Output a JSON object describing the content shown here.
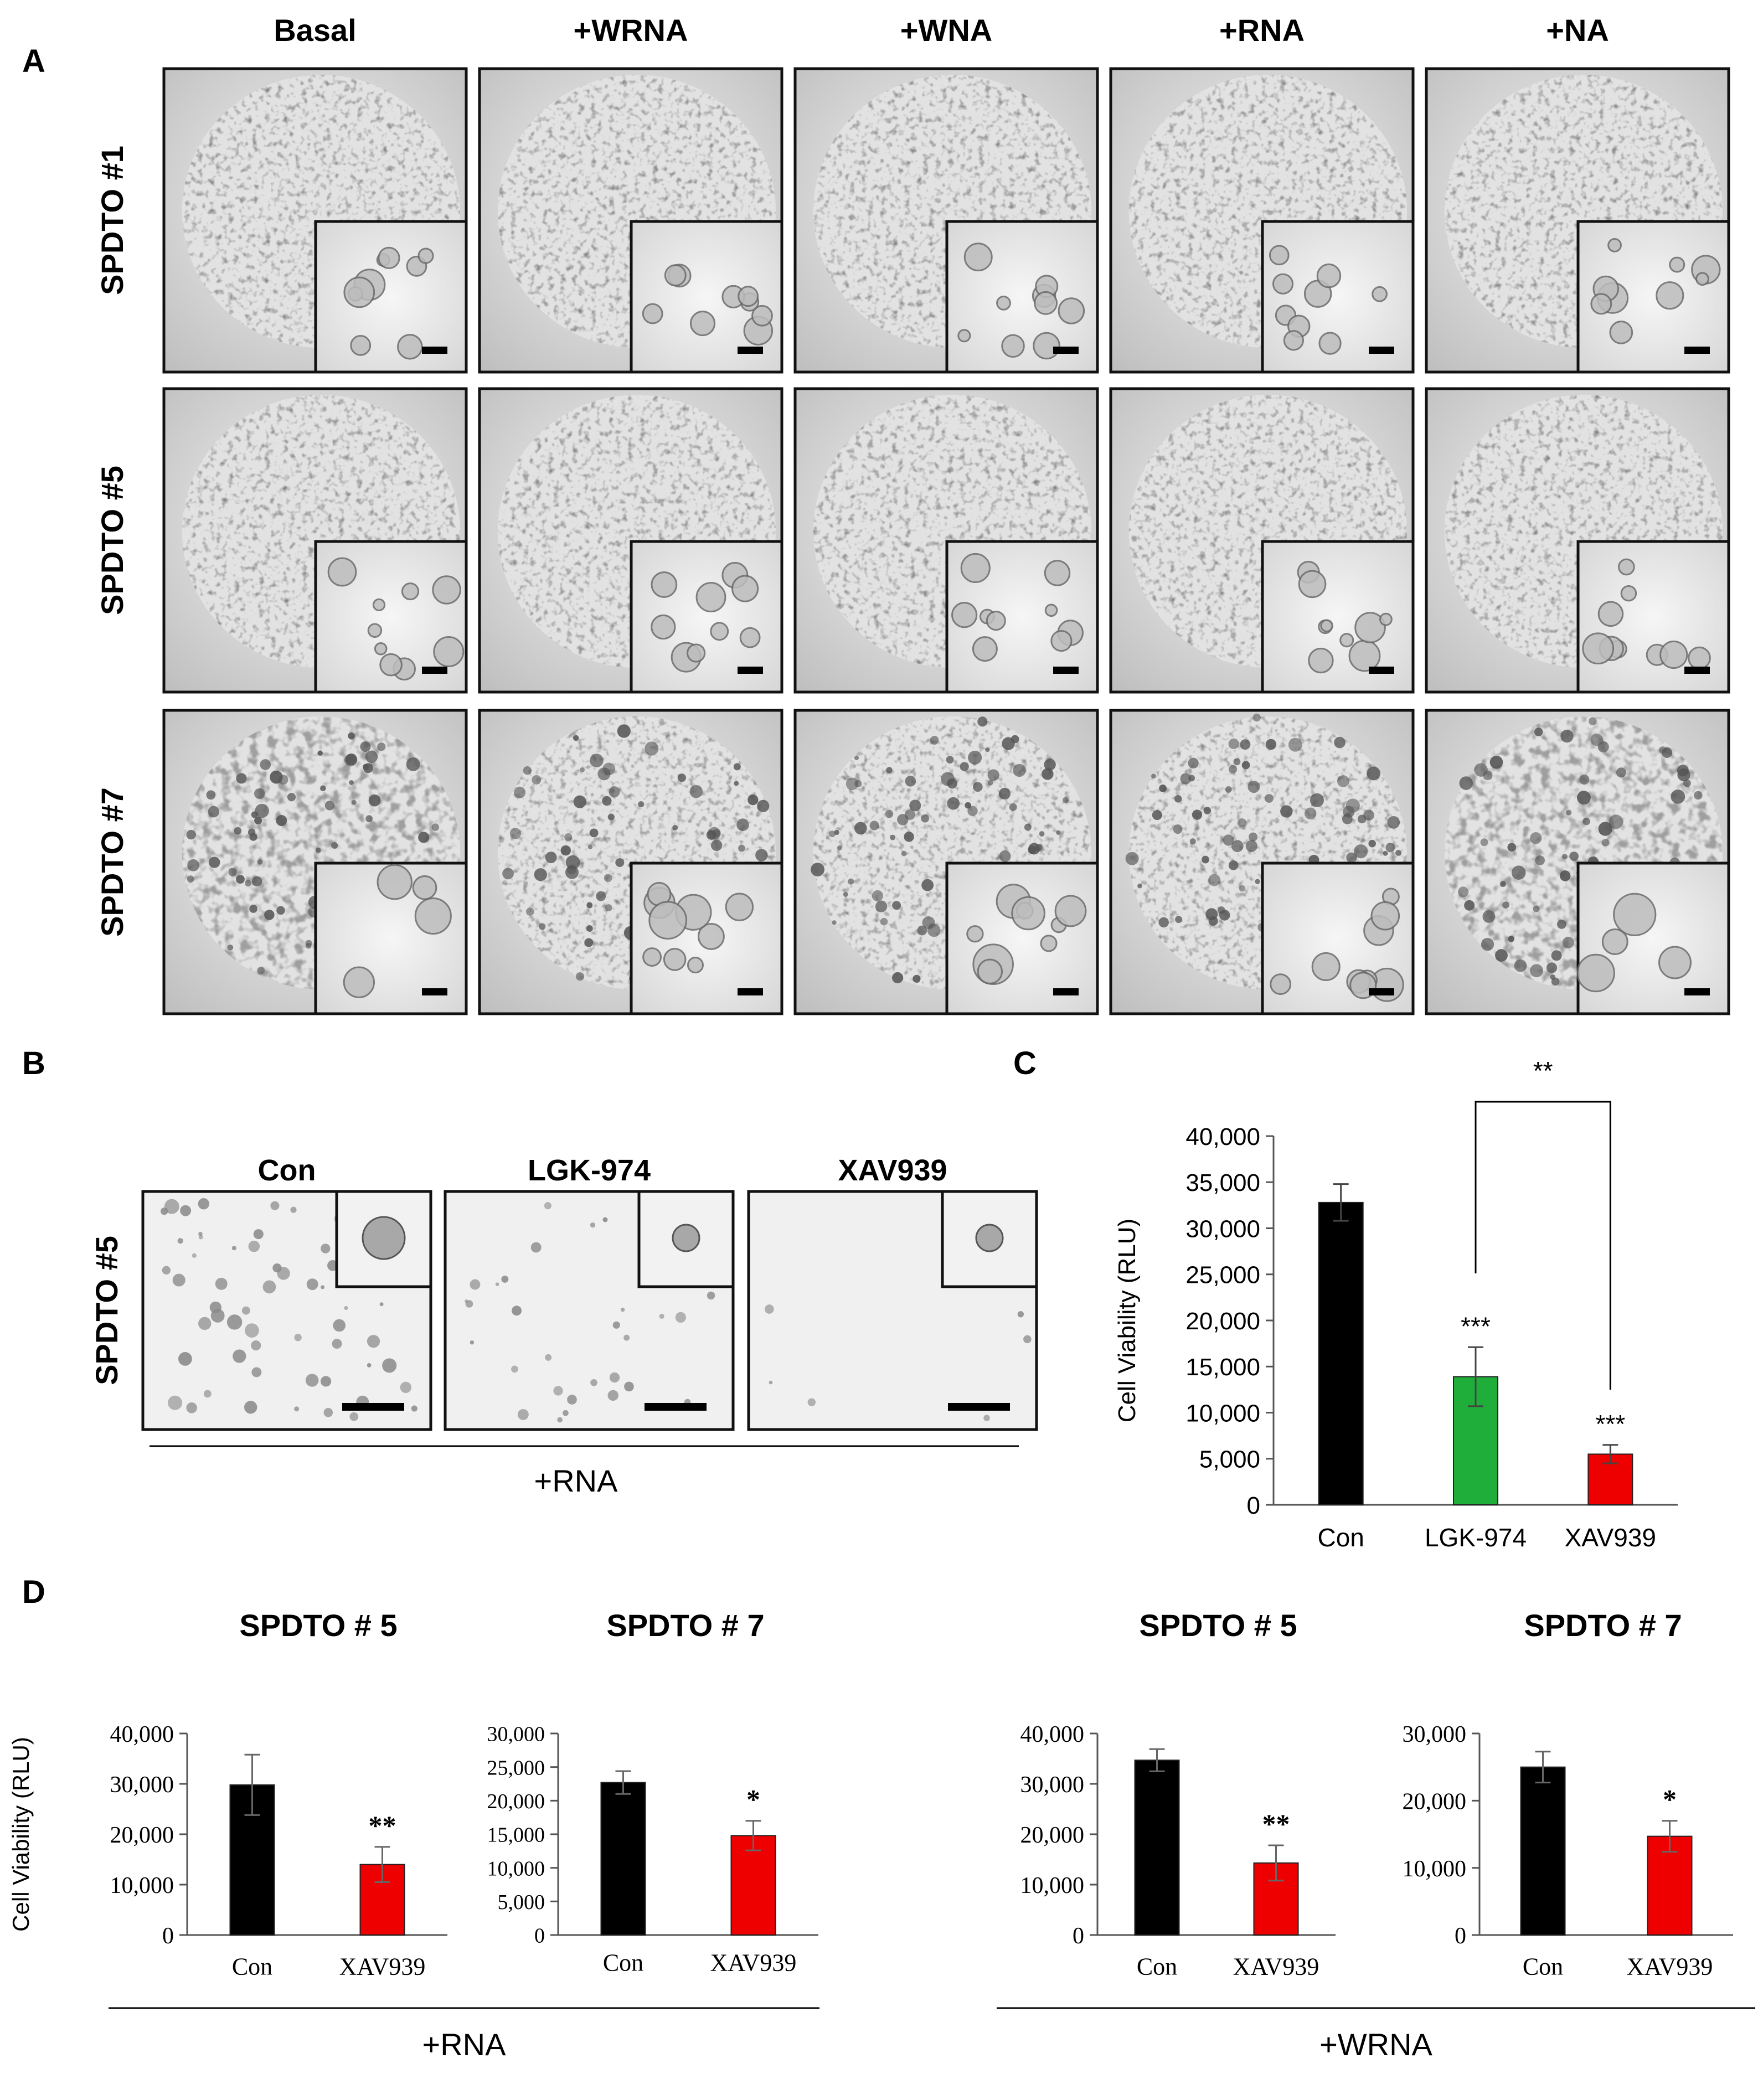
{
  "panels": {
    "A": "A",
    "B": "B",
    "C": "C",
    "D": "D"
  },
  "panel_a": {
    "columns": [
      "Basal",
      "+WRNA",
      "+WNA",
      "+RNA",
      "+NA"
    ],
    "rows": [
      "SPDTO #1",
      "SPDTO #5",
      "SPDTO #7"
    ]
  },
  "panel_b": {
    "row_label": "SPDTO #5",
    "columns": [
      "Con",
      "LGK-974",
      "XAV939"
    ],
    "condition": "+RNA"
  },
  "chart_data": [
    {
      "id": "C",
      "type": "bar",
      "categories": [
        "Con",
        "LGK-974",
        "XAV939"
      ],
      "values": [
        32800,
        13900,
        5500
      ],
      "errors": [
        2000,
        3200,
        1000
      ],
      "colors": [
        "#000000",
        "#1fae3a",
        "#ee0000"
      ],
      "ylabel": "Cell Viability (RLU)",
      "ylim": [
        0,
        40000
      ],
      "yticks": [
        "0",
        "5,000",
        "10,000",
        "15,000",
        "20,000",
        "25,000",
        "30,000",
        "35,000",
        "40,000"
      ],
      "annotations": [
        "",
        "***",
        "***"
      ],
      "comparison": "**"
    },
    {
      "id": "D1",
      "type": "bar",
      "title": "SPDTO # 5",
      "categories": [
        "Con",
        "XAV939"
      ],
      "values": [
        29800,
        14000
      ],
      "errors": [
        6000,
        3500
      ],
      "colors": [
        "#000000",
        "#ee0000"
      ],
      "ylabel": "Cell Viability (RLU)",
      "ylim": [
        0,
        40000
      ],
      "yticks": [
        "0",
        "10,000",
        "20,000",
        "30,000",
        "40,000"
      ],
      "annotations": [
        "",
        "**"
      ]
    },
    {
      "id": "D2",
      "type": "bar",
      "title": "SPDTO # 7",
      "categories": [
        "Con",
        "XAV939"
      ],
      "values": [
        22700,
        14800
      ],
      "errors": [
        1700,
        2200
      ],
      "colors": [
        "#000000",
        "#ee0000"
      ],
      "ylim": [
        0,
        30000
      ],
      "yticks": [
        "0",
        "5,000",
        "10,000",
        "15,000",
        "20,000",
        "25,000",
        "30,000"
      ],
      "annotations": [
        "",
        "*"
      ]
    },
    {
      "id": "D3",
      "type": "bar",
      "title": "SPDTO # 5",
      "categories": [
        "Con",
        "XAV939"
      ],
      "values": [
        34700,
        14300
      ],
      "errors": [
        2200,
        3500
      ],
      "colors": [
        "#000000",
        "#ee0000"
      ],
      "ylim": [
        0,
        40000
      ],
      "yticks": [
        "0",
        "10,000",
        "20,000",
        "30,000",
        "40,000"
      ],
      "annotations": [
        "",
        "**"
      ]
    },
    {
      "id": "D4",
      "type": "bar",
      "title": "SPDTO # 7",
      "categories": [
        "Con",
        "XAV939"
      ],
      "values": [
        25000,
        14700
      ],
      "errors": [
        2300,
        2300
      ],
      "colors": [
        "#000000",
        "#ee0000"
      ],
      "ylim": [
        0,
        30000
      ],
      "yticks": [
        "0",
        "10,000",
        "20,000",
        "30,000"
      ],
      "annotations": [
        "",
        "*"
      ]
    }
  ],
  "panel_d": {
    "conditions": [
      "+RNA",
      "+WRNA"
    ]
  }
}
